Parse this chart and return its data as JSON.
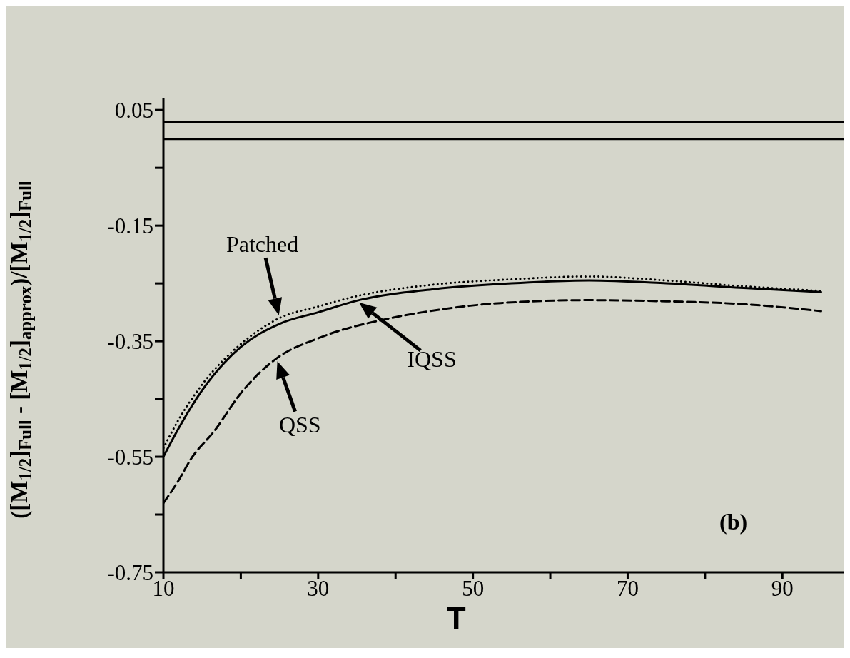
{
  "chart_data": {
    "type": "line",
    "xlabel": "T",
    "ylabel": "([M$_{1/2}$]$_{Full}$ - [M$_{1/2}$]$_{approx}$)/[M$_{1/2}$]$_{Full}$",
    "xlim": [
      10,
      98
    ],
    "xticks": [
      10,
      {
        "value": 20,
        "label": null
      },
      30,
      {
        "value": 40,
        "label": null
      },
      50,
      {
        "value": 60,
        "label": null
      },
      70,
      {
        "value": 80,
        "label": null
      },
      90
    ],
    "ylim": [
      -0.75,
      0.07
    ],
    "yticks": [
      0.05,
      {
        "value": -0.05,
        "label": null
      },
      -0.15,
      {
        "value": -0.25,
        "label": null
      },
      -0.35,
      {
        "value": -0.45,
        "label": null
      },
      -0.55,
      {
        "value": -0.65,
        "label": null
      },
      -0.75
    ],
    "marker": "none",
    "ref_lines": [
      {
        "axis": "y",
        "value": 0.03,
        "color": "#000000"
      },
      {
        "axis": "y",
        "value": 0,
        "color": "#000000"
      }
    ],
    "series": [
      {
        "color": "#000000",
        "line_style": "dotted",
        "x": [
          10,
          12,
          15,
          20,
          25,
          30,
          35,
          45,
          55,
          65,
          75,
          85,
          95
        ],
        "values": [
          -0.535,
          -0.485,
          -0.425,
          -0.355,
          -0.31,
          -0.29,
          -0.272,
          -0.252,
          -0.243,
          -0.238,
          -0.245,
          -0.255,
          -0.263
        ]
      },
      {
        "color": "#000000",
        "line_style": "solid",
        "x": [
          10,
          12,
          15,
          20,
          25,
          30,
          35,
          45,
          55,
          65,
          75,
          85,
          95
        ],
        "values": [
          -0.55,
          -0.5,
          -0.435,
          -0.36,
          -0.32,
          -0.3,
          -0.28,
          -0.26,
          -0.25,
          -0.245,
          -0.25,
          -0.258,
          -0.265
        ]
      },
      {
        "color": "#000000",
        "line_style": "dashed",
        "x": [
          10,
          12,
          13.5,
          16.6,
          20,
          24.6,
          30,
          39.4,
          44.4,
          53.6,
          65,
          75,
          85,
          95
        ],
        "values": [
          -0.63,
          -0.59,
          -0.555,
          -0.505,
          -0.44,
          -0.38,
          -0.345,
          -0.31,
          -0.298,
          -0.284,
          -0.279,
          -0.281,
          -0.286,
          -0.298
        ]
      }
    ],
    "annotations": [
      {
        "text": "Patched",
        "x": 25,
        "y": -0.31
      },
      {
        "text": "IQSS",
        "x": 35,
        "y": -0.28
      },
      {
        "text": "QSS",
        "x": 24.6,
        "y": -0.38
      },
      "(b)"
    ]
  }
}
